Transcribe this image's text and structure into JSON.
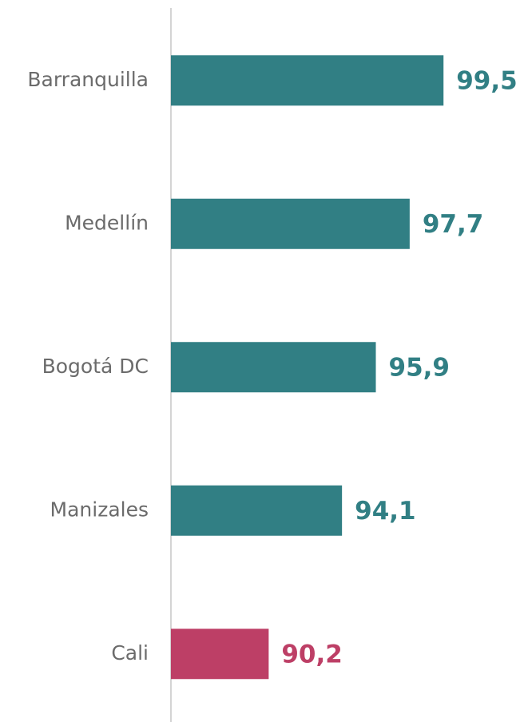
{
  "chart_data": {
    "type": "bar",
    "orientation": "horizontal",
    "categories": [
      "Barranquilla",
      "Medellín",
      "Bogotá DC",
      "Manizales",
      "Cali"
    ],
    "values": [
      99.5,
      97.7,
      95.9,
      94.1,
      90.2
    ],
    "value_labels": [
      "99,5",
      "97,7",
      "95,9",
      "94,1",
      "90,2"
    ],
    "colors": [
      "#317f84",
      "#317f84",
      "#317f84",
      "#317f84",
      "#bd3f66"
    ],
    "xlim": [
      85,
      100
    ]
  }
}
